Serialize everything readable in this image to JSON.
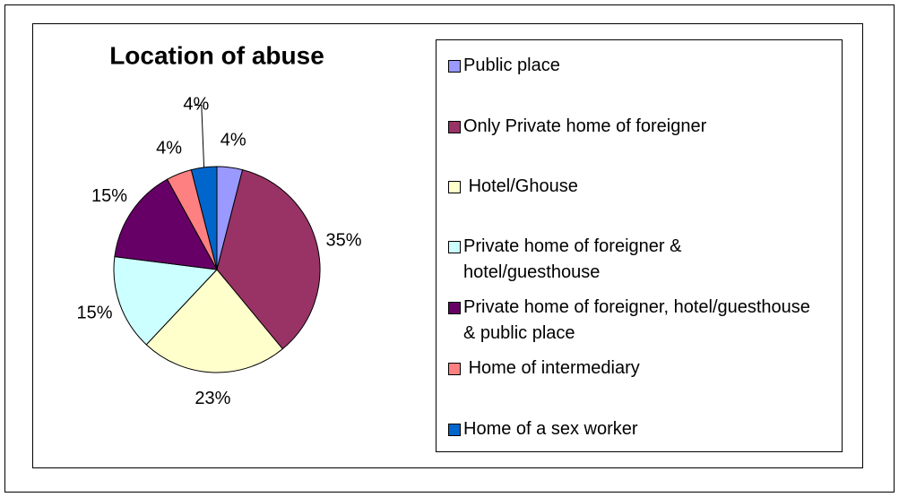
{
  "chart_data": {
    "type": "pie",
    "title": "Location of abuse",
    "categories": [
      "Public place",
      "Only Private home of foreigner",
      " Hotel/Ghouse",
      "Private home of foreigner & hotel/guesthouse",
      "Private home of foreigner, hotel/guesthouse & public place",
      " Home of intermediary",
      "Home of a sex worker"
    ],
    "values": [
      4,
      35,
      23,
      15,
      15,
      4,
      4
    ],
    "value_labels": [
      "4%",
      "35%",
      "23%",
      "15%",
      "15%",
      "4%",
      "4%"
    ],
    "colors": [
      "#9999ff",
      "#993366",
      "#ffffcc",
      "#ccffff",
      "#660066",
      "#ff8080",
      "#0066cc"
    ],
    "legend": "right"
  }
}
